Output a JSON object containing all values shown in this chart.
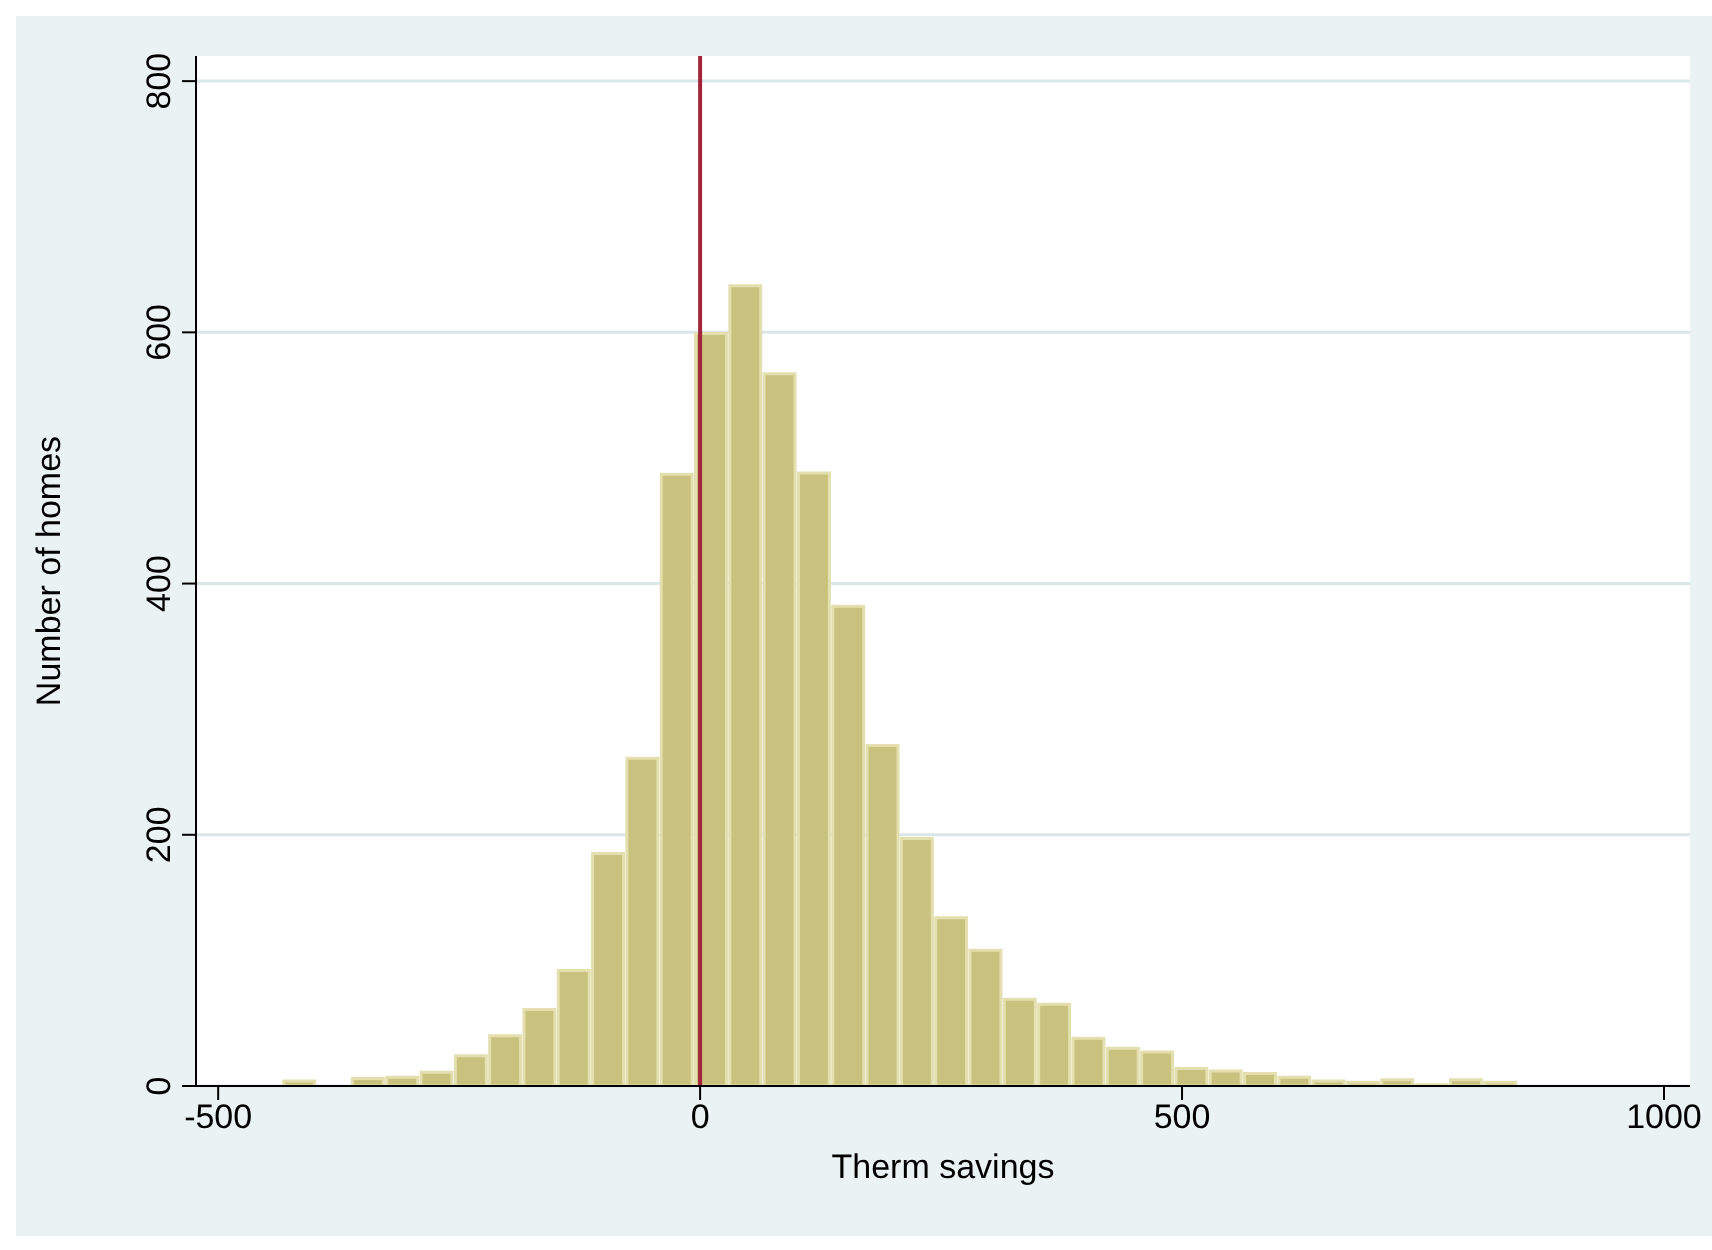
{
  "chart_data": {
    "type": "histogram",
    "xlabel": "Therm savings",
    "ylabel": "Number of homes",
    "bins": [
      -434,
      -398.4,
      -362.8,
      -327.2,
      -291.6,
      -256,
      -220.4,
      -184.8,
      -149.2,
      -113.6,
      -78,
      -42.4,
      -6.8,
      28.8,
      64.4,
      100,
      135.6,
      171.2,
      206.8,
      242.4,
      278,
      313.6,
      349.2,
      384.8,
      420.4,
      456,
      491.6,
      527.2,
      562.8,
      598.4,
      634,
      669.6,
      705.2,
      740.8,
      776.4,
      812,
      847.6
    ],
    "values": [
      4,
      0,
      6,
      7,
      11,
      24,
      40,
      61,
      92,
      185,
      261,
      487,
      599,
      637,
      567,
      488,
      382,
      271,
      197,
      134,
      108,
      69,
      65,
      38,
      30,
      27,
      14,
      12,
      10,
      7,
      4,
      3,
      5,
      1,
      5,
      3
    ],
    "color": "#c9c27e",
    "xlim": [
      -523,
      1027
    ],
    "xticks": [
      -500,
      0,
      500,
      1000
    ],
    "ylim": [
      0,
      820
    ],
    "yticks": [
      0,
      200,
      400,
      600,
      800
    ],
    "grid": "y",
    "ref_lines": [
      {
        "axis": "x",
        "value": 0,
        "color": "#a3243b"
      }
    ]
  }
}
